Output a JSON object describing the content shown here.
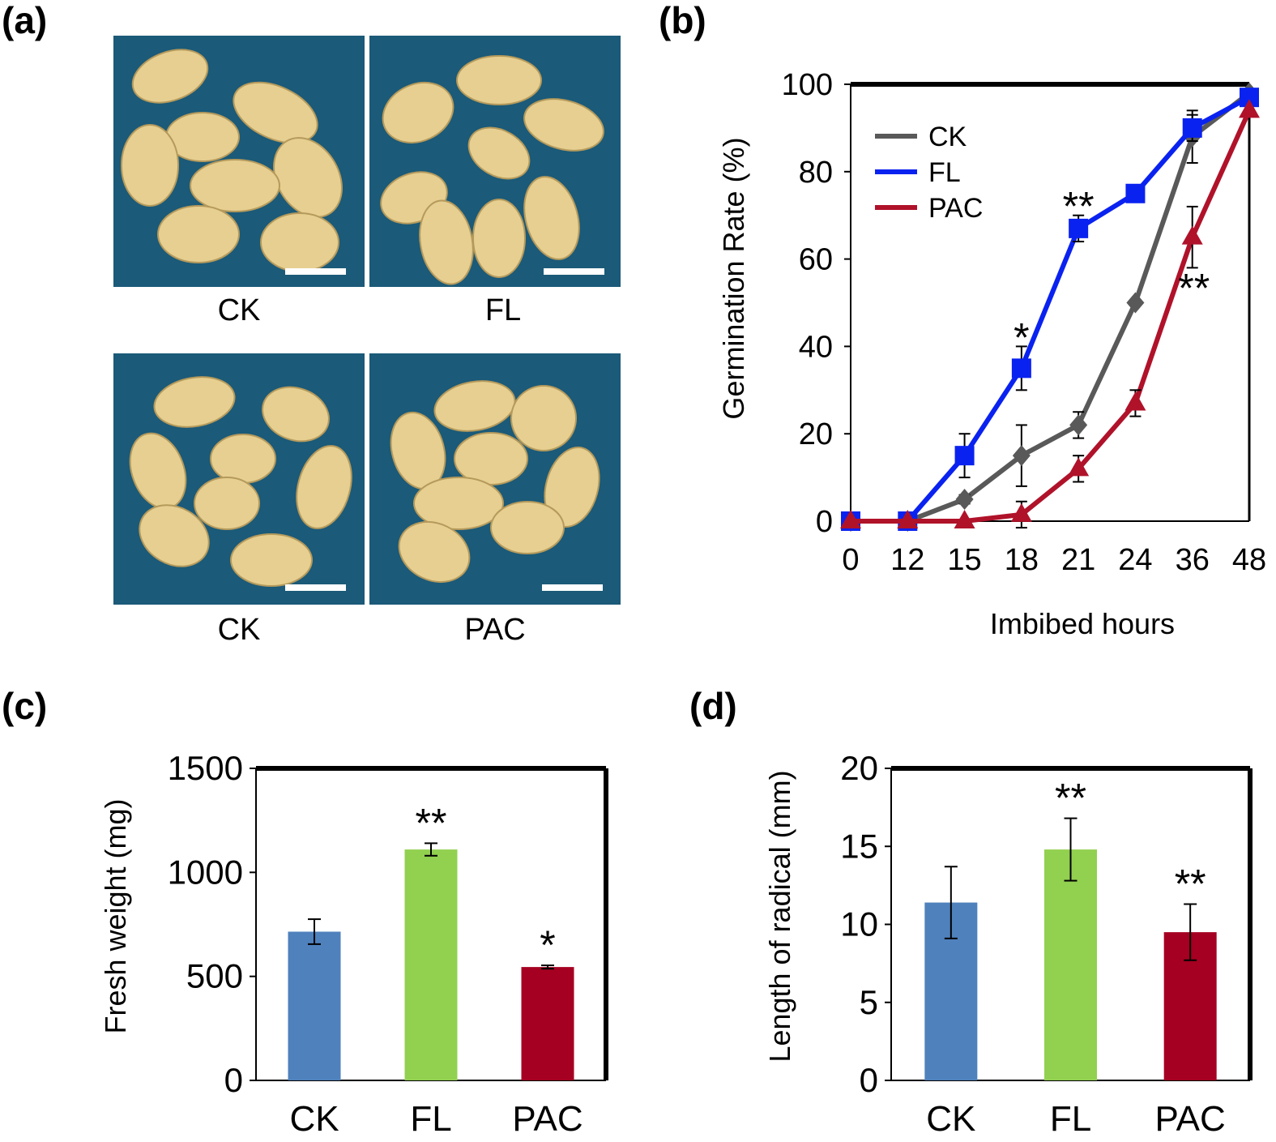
{
  "panels": {
    "a": {
      "label": "(a)",
      "photos": [
        {
          "caption": "CK",
          "bg": "#1b5a78"
        },
        {
          "caption": "FL",
          "bg": "#1b5a78"
        },
        {
          "caption": "CK",
          "bg": "#1b5a78"
        },
        {
          "caption": "PAC",
          "bg": "#1b5a78"
        }
      ]
    },
    "b": {
      "label": "(b)"
    },
    "c": {
      "label": "(c)"
    },
    "d": {
      "label": "(d)"
    }
  },
  "chart_data": [
    {
      "id": "b",
      "type": "line",
      "categories": [
        "0",
        "12",
        "15",
        "18",
        "21",
        "24",
        "36",
        "48"
      ],
      "xlabel": "Imbibed hours",
      "ylabel": "Germination Rate (%)",
      "ylim": [
        0,
        100
      ],
      "yticks": [
        0,
        20,
        40,
        60,
        80,
        100
      ],
      "legend_position": "top-left",
      "series": [
        {
          "name": "CK",
          "color": "#595959",
          "marker": "diamond",
          "values": [
            0,
            0,
            5,
            15,
            22,
            50,
            88,
            98
          ],
          "errors": [
            0,
            0,
            1,
            7,
            3,
            0,
            6,
            0
          ]
        },
        {
          "name": "FL",
          "color": "#0a22f0",
          "marker": "square",
          "values": [
            0,
            0,
            15,
            35,
            67,
            75,
            90,
            97
          ],
          "errors": [
            0,
            0,
            5,
            5,
            3,
            0,
            3,
            0
          ]
        },
        {
          "name": "PAC",
          "color": "#b0122a",
          "marker": "triangle",
          "values": [
            0,
            0,
            0,
            1.5,
            12,
            27,
            65,
            94
          ],
          "errors": [
            0,
            0,
            0,
            3,
            3,
            3,
            7,
            0
          ]
        }
      ],
      "annotations": [
        {
          "text": "*",
          "series": "FL",
          "category": "18"
        },
        {
          "text": "**",
          "series": "FL",
          "category": "21"
        },
        {
          "text": "**",
          "series": "PAC",
          "category": "36"
        }
      ]
    },
    {
      "id": "c",
      "type": "bar",
      "categories": [
        "CK",
        "FL",
        "PAC"
      ],
      "values": [
        715,
        1110,
        545
      ],
      "errors": [
        60,
        30,
        8
      ],
      "colors": [
        "#4f81bd",
        "#92d050",
        "#a50021"
      ],
      "significance": [
        "",
        "**",
        "*"
      ],
      "ylabel": "Fresh weight  (mg)",
      "ylim": [
        0,
        1500
      ],
      "yticks": [
        0,
        500,
        1000,
        1500
      ]
    },
    {
      "id": "d",
      "type": "bar",
      "categories": [
        "CK",
        "FL",
        "PAC"
      ],
      "values": [
        11.4,
        14.8,
        9.5
      ],
      "errors": [
        2.3,
        2.0,
        1.8
      ],
      "colors": [
        "#4f81bd",
        "#92d050",
        "#a50021"
      ],
      "significance": [
        "",
        "**",
        "**"
      ],
      "ylabel": "Length of radical (mm)",
      "ylim": [
        0,
        20
      ],
      "yticks": [
        0,
        5,
        10,
        15,
        20
      ]
    }
  ]
}
